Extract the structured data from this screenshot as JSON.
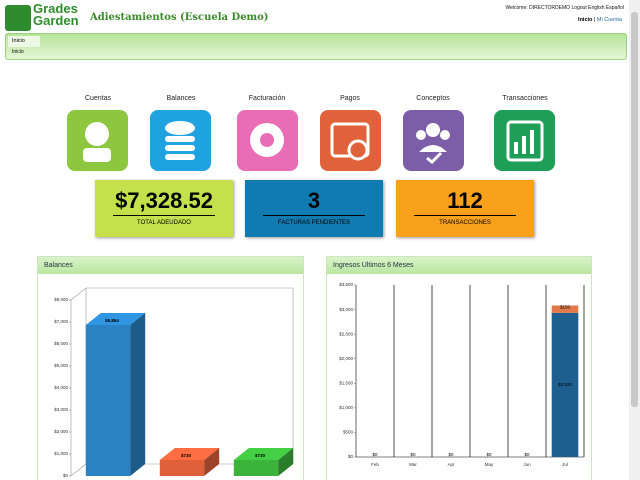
{
  "header": {
    "logo_top": "Grades",
    "logo_bottom": "Garden",
    "title": "Adiestamientos (Escuela Demo)",
    "welcome": "Welcome: DIRECTORDEMO",
    "links": [
      "Logout",
      "English",
      "Español"
    ],
    "nav": [
      "Inicio",
      "Mi Cuenta"
    ]
  },
  "tabs": [
    "Inicio"
  ],
  "breadcrumb": "Inicio",
  "shortcuts": [
    "Cuentas",
    "Balances",
    "Facturación",
    "Pagos",
    "Conceptos",
    "Transacciones"
  ],
  "stats": [
    {
      "value": "$7,328.52",
      "label": "TOTAL ADEUDADO"
    },
    {
      "value": 3,
      "label": "FACTURAS PENDIENTES"
    },
    {
      "value": 112,
      "label": "TRANSACCIONES"
    }
  ],
  "chart_data": [
    {
      "type": "bar3d",
      "title": "Balances",
      "categories": [
        null,
        null,
        null
      ],
      "values": [
        6864,
        730,
        730
      ],
      "value_labels": [
        "$6,864",
        "$730",
        "$730"
      ],
      "colors": [
        "#2a82c4",
        "#e0603a",
        "#3cb43c"
      ],
      "ylim": [
        0,
        8000
      ],
      "yticks": [
        {
          "value": 0,
          "label": "$0"
        },
        {
          "value": 1000,
          "label": "$1,000"
        },
        {
          "value": 2000,
          "label": "$2,000"
        },
        {
          "value": 3000,
          "label": "$3,000"
        },
        {
          "value": 4000,
          "label": "$4,000"
        },
        {
          "value": 5000,
          "label": "$5,000"
        },
        {
          "value": 6000,
          "label": "$6,000"
        },
        {
          "value": 7000,
          "label": "$7,000"
        },
        {
          "value": 8000,
          "label": "$8,000"
        }
      ]
    },
    {
      "type": "stacked_bar",
      "title": "Ingresos Ultimos 6 Meses",
      "categories": [
        "Feb",
        "Mar",
        "Apr",
        "May",
        "Jun",
        "Jul"
      ],
      "series": [
        {
          "color": "#1f5f8f",
          "values": [
            0,
            0,
            0,
            0,
            0,
            2933
          ],
          "value_labels": [
            "$0",
            "$0",
            "$0",
            "$0",
            "$0",
            "$2,933"
          ]
        },
        {
          "color": "#e07a4a",
          "values": [
            0,
            0,
            0,
            0,
            0,
            150
          ],
          "value_labels": [
            null,
            null,
            null,
            null,
            null,
            "$150"
          ]
        }
      ],
      "ylim": [
        0,
        3500
      ],
      "yticks": [
        {
          "value": 0,
          "label": "$0"
        },
        {
          "value": 500,
          "label": "$500"
        },
        {
          "value": 1000,
          "label": "$1,000"
        },
        {
          "value": 1500,
          "label": "$1,500"
        },
        {
          "value": 2000,
          "label": "$2,000"
        },
        {
          "value": 2500,
          "label": "$2,500"
        },
        {
          "value": 3000,
          "label": "$3,000"
        },
        {
          "value": 3500,
          "label": "$3,500"
        }
      ]
    }
  ]
}
